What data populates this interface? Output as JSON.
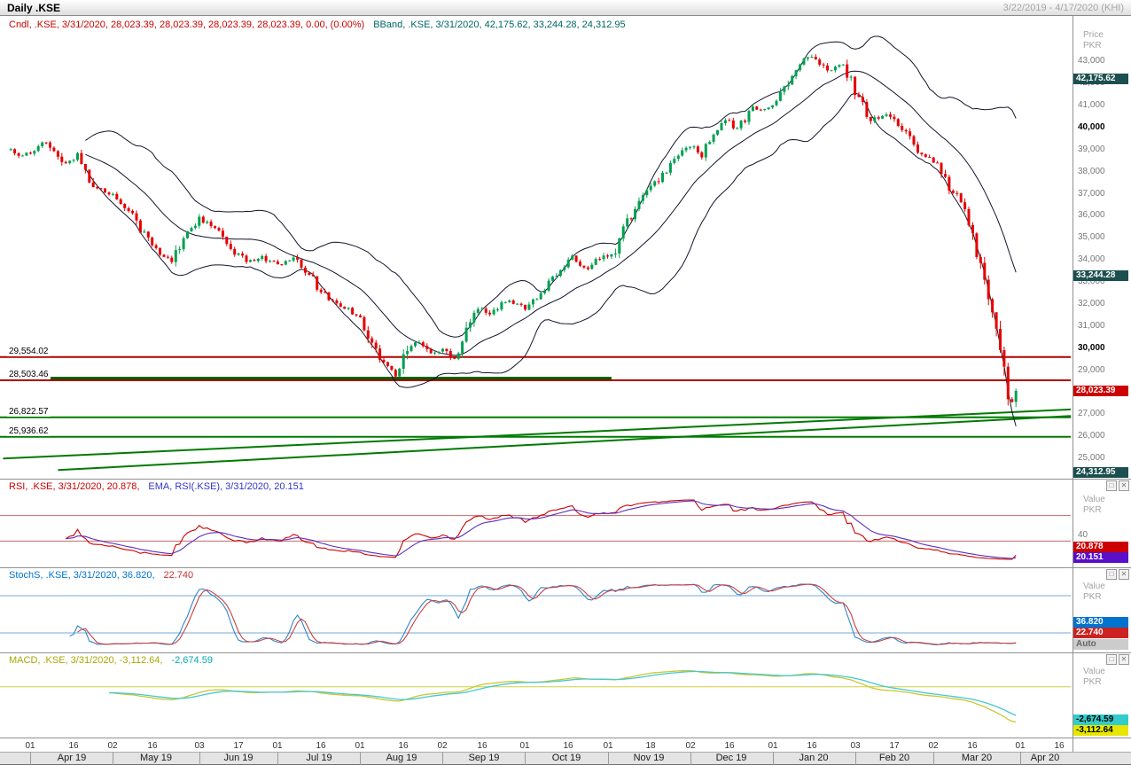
{
  "title_bar": {
    "title": "Daily .KSE",
    "range": "3/22/2019 - 4/17/2020 (KHI)"
  },
  "window_controls": {
    "restore": "□",
    "close": "✕"
  },
  "axis": {
    "price_unit_line1": "Price",
    "price_unit_line2": "PKR",
    "value_unit_line1": "Value",
    "value_unit_line2": "PKR",
    "main_ticks": [
      {
        "value": 43000,
        "label": "43,000",
        "bold": false
      },
      {
        "value": 42000,
        "label": "42,000",
        "bold": false
      },
      {
        "value": 41000,
        "label": "41,000",
        "bold": false
      },
      {
        "value": 40000,
        "label": "40,000",
        "bold": true
      },
      {
        "value": 39000,
        "label": "39,000",
        "bold": false
      },
      {
        "value": 38000,
        "label": "38,000",
        "bold": false
      },
      {
        "value": 37000,
        "label": "37,000",
        "bold": false
      },
      {
        "value": 36000,
        "label": "36,000",
        "bold": false
      },
      {
        "value": 35000,
        "label": "35,000",
        "bold": false
      },
      {
        "value": 34000,
        "label": "34,000",
        "bold": false
      },
      {
        "value": 33000,
        "label": "33,000",
        "bold": false
      },
      {
        "value": 32000,
        "label": "32,000",
        "bold": false
      },
      {
        "value": 31000,
        "label": "31,000",
        "bold": false
      },
      {
        "value": 30000,
        "label": "30,000",
        "bold": true
      },
      {
        "value": 29000,
        "label": "29,000",
        "bold": false
      },
      {
        "value": 28000,
        "label": "28,000",
        "bold": false
      },
      {
        "value": 27000,
        "label": "27,000",
        "bold": false
      },
      {
        "value": 26000,
        "label": "26,000",
        "bold": false
      },
      {
        "value": 25000,
        "label": "25,000",
        "bold": false
      }
    ],
    "rsi_ticks": [
      {
        "value": 40,
        "label": "40"
      }
    ]
  },
  "legends": {
    "main": [
      {
        "text": "Cndl, .KSE, 3/31/2020, 28,023.39, 28,023.39, 28,023.39, 28,023.39, 0.00, (0.00%)",
        "color": "#cc0000"
      },
      {
        "text": "BBand, .KSE, 3/31/2020, 42,175.62, 33,244.28, 24,312.95",
        "color": "#006666"
      }
    ],
    "rsi": [
      {
        "text": "RSI, .KSE, 3/31/2020, 20.878,",
        "color": "#cc0000"
      },
      {
        "text": "EMA, RSI(.KSE), 3/31/2020, 20.151",
        "color": "#3333cc"
      }
    ],
    "stoch": [
      {
        "text": "StochS, .KSE, 3/31/2020, 36.820,",
        "color": "#0073cf"
      },
      {
        "text": "22.740",
        "color": "#cc3333"
      }
    ],
    "macd": [
      {
        "text": "MACD, .KSE, 3/31/2020, -3,112.64,",
        "color": "#a8a800"
      },
      {
        "text": "-2,674.59",
        "color": "#00aab4"
      }
    ]
  },
  "badges": {
    "main": [
      {
        "text": "42,175.62",
        "value": 42175.62,
        "bg": "#1c4f4f",
        "fg": "#ffffff"
      },
      {
        "text": "33,244.28",
        "value": 33244.28,
        "bg": "#1c4f4f",
        "fg": "#ffffff"
      },
      {
        "text": "28,023.39",
        "value": 28023.39,
        "bg": "#cc0000",
        "fg": "#ffffff"
      },
      {
        "text": "24,312.95",
        "value": 24312.95,
        "bg": "#1c4f4f",
        "fg": "#ffffff"
      }
    ],
    "rsi": [
      {
        "text": "20.878",
        "value": 20.878,
        "bg": "#cc0000",
        "fg": "#ffffff"
      },
      {
        "text": "20.151",
        "value": 20.151,
        "bg": "#5a10c8",
        "fg": "#ffffff"
      }
    ],
    "stoch": [
      {
        "text": "36.820",
        "value": 36.82,
        "bg": "#0073cf",
        "fg": "#ffffff"
      },
      {
        "text": "22.740",
        "value": 22.74,
        "bg": "#cc2222",
        "fg": "#ffffff"
      },
      {
        "text": "Auto",
        "value": 1,
        "bg": "#cccccc",
        "fg": "#666666"
      }
    ],
    "macd": [
      {
        "text": "-2,674.59",
        "value": -2674.59,
        "bg": "#33cccc",
        "fg": "#000000"
      },
      {
        "text": "-3,112.64",
        "value": -3112.64,
        "bg": "#e6e600",
        "fg": "#000000"
      }
    ]
  },
  "chart_data": {
    "type": "candlestick",
    "title": "Daily .KSE",
    "instrument": ".KSE",
    "interval": "Daily",
    "x_axis_range": "3/22/2019 - 4/17/2020",
    "total_slots": 270,
    "data_days": 257,
    "last_close": 28023.39,
    "y_axis": {
      "label": "Price PKR",
      "min": 24200,
      "max": 43900,
      "tick_step": 1000
    },
    "noise": {
      "body_base": 140,
      "body_slope": 1.0,
      "shadow_base": 55,
      "shadow_slope": 0.45
    },
    "price_keypoints": [
      [
        0,
        39000
      ],
      [
        2,
        38750
      ],
      [
        5,
        38800
      ],
      [
        9,
        39300
      ],
      [
        13,
        38300
      ],
      [
        17,
        38700
      ],
      [
        21,
        37300
      ],
      [
        26,
        36900
      ],
      [
        30,
        36300
      ],
      [
        34,
        35100
      ],
      [
        38,
        34200
      ],
      [
        41,
        33900
      ],
      [
        45,
        35300
      ],
      [
        48,
        35800
      ],
      [
        52,
        35400
      ],
      [
        56,
        34400
      ],
      [
        60,
        33900
      ],
      [
        64,
        34100
      ],
      [
        68,
        33700
      ],
      [
        72,
        34000
      ],
      [
        76,
        33300
      ],
      [
        80,
        32300
      ],
      [
        84,
        31900
      ],
      [
        89,
        31400
      ],
      [
        92,
        30100
      ],
      [
        95,
        29300
      ],
      [
        98,
        28700
      ],
      [
        101,
        29900
      ],
      [
        104,
        30300
      ],
      [
        107,
        29700
      ],
      [
        110,
        29900
      ],
      [
        113,
        29500
      ],
      [
        116,
        30900
      ],
      [
        119,
        31900
      ],
      [
        122,
        31500
      ],
      [
        126,
        32100
      ],
      [
        131,
        31800
      ],
      [
        135,
        32500
      ],
      [
        139,
        33300
      ],
      [
        143,
        34000
      ],
      [
        147,
        33600
      ],
      [
        151,
        34300
      ],
      [
        153,
        34100
      ],
      [
        156,
        35400
      ],
      [
        160,
        36600
      ],
      [
        164,
        37400
      ],
      [
        168,
        38300
      ],
      [
        173,
        39200
      ],
      [
        176,
        38700
      ],
      [
        179,
        39600
      ],
      [
        182,
        40300
      ],
      [
        185,
        39900
      ],
      [
        189,
        40800
      ],
      [
        194,
        40900
      ],
      [
        198,
        42100
      ],
      [
        202,
        43000
      ],
      [
        204,
        43200
      ],
      [
        208,
        42500
      ],
      [
        212,
        42800
      ],
      [
        215,
        41700
      ],
      [
        219,
        40300
      ],
      [
        223,
        40600
      ],
      [
        227,
        39900
      ],
      [
        231,
        39000
      ],
      [
        235,
        38500
      ],
      [
        239,
        37300
      ],
      [
        243,
        36300
      ],
      [
        246,
        34200
      ],
      [
        249,
        32300
      ],
      [
        251,
        30900
      ],
      [
        252,
        30200
      ],
      [
        253,
        28900
      ],
      [
        254,
        27600
      ],
      [
        255,
        27500
      ],
      [
        256,
        28023.39
      ]
    ],
    "indicators": {
      "bollinger": {
        "period": 20,
        "mult": 2,
        "upper": 42175.62,
        "middle": 33244.28,
        "lower": 24312.95
      },
      "rsi": {
        "period": 14,
        "value": 20.878,
        "ema_period": 9,
        "ema_value": 20.151,
        "upper_line": 70,
        "lower_line": 30
      },
      "stoch": {
        "k": 14,
        "smooth": 3,
        "d": 3,
        "k_value": 36.82,
        "d_value": 22.74,
        "upper_line": 80,
        "lower_line": 20
      },
      "macd": {
        "fast": 12,
        "slow": 26,
        "signal": 9,
        "macd_value": -3112.64,
        "signal_value": -2674.59,
        "zero_line": 0
      }
    },
    "levels": [
      {
        "type": "h",
        "label": "29,554.02",
        "value": 29554.02,
        "color": "#b40000",
        "w": 2
      },
      {
        "type": "h",
        "label": "28,503.46",
        "value": 28503.46,
        "color": "#b40000",
        "w": 2
      },
      {
        "type": "h",
        "label": "26,822.57",
        "value": 26822.57,
        "color": "#007a00",
        "w": 2
      },
      {
        "type": "h",
        "label": "25,936.62",
        "value": 25936.62,
        "color": "#007a00",
        "w": 2
      },
      {
        "type": "seg",
        "label": null,
        "value": 28600,
        "d1": 0,
        "d2": 153,
        "color": "#005c00",
        "w": 3
      },
      {
        "type": "diag",
        "label": null,
        "d1": -2,
        "v1": 24950,
        "d2": 272,
        "v2": 27180,
        "color": "#007a00",
        "w": 2
      },
      {
        "type": "diag",
        "label": null,
        "d1": 12,
        "v1": 24430,
        "d2": 272,
        "v2": 26880,
        "color": "#007a00",
        "w": 2
      }
    ],
    "months": [
      {
        "label": "Apr 19",
        "start": 5,
        "ticks": [
          [
            "01",
            5
          ],
          [
            "16",
            16
          ]
        ]
      },
      {
        "label": "May 19",
        "start": 26,
        "ticks": [
          [
            "02",
            26
          ],
          [
            "16",
            36
          ]
        ]
      },
      {
        "label": "Jun 19",
        "start": 48,
        "ticks": [
          [
            "03",
            48
          ],
          [
            "17",
            58
          ]
        ]
      },
      {
        "label": "Jul 19",
        "start": 68,
        "ticks": [
          [
            "01",
            68
          ],
          [
            "16",
            79
          ]
        ]
      },
      {
        "label": "Aug 19",
        "start": 89,
        "ticks": [
          [
            "01",
            89
          ],
          [
            "16",
            100
          ]
        ]
      },
      {
        "label": "Sep 19",
        "start": 110,
        "ticks": [
          [
            "02",
            110
          ],
          [
            "16",
            120
          ]
        ]
      },
      {
        "label": "Oct 19",
        "start": 131,
        "ticks": [
          [
            "01",
            131
          ],
          [
            "16",
            142
          ]
        ]
      },
      {
        "label": "Nov 19",
        "start": 152,
        "ticks": [
          [
            "01",
            152
          ],
          [
            "18",
            163
          ]
        ]
      },
      {
        "label": "Dec 19",
        "start": 173,
        "ticks": [
          [
            "02",
            173
          ],
          [
            "16",
            183
          ]
        ]
      },
      {
        "label": "Jan 20",
        "start": 194,
        "ticks": [
          [
            "01",
            194
          ],
          [
            "16",
            204
          ]
        ]
      },
      {
        "label": "Feb 20",
        "start": 215,
        "ticks": [
          [
            "03",
            215
          ],
          [
            "17",
            225
          ]
        ]
      },
      {
        "label": "Mar 20",
        "start": 235,
        "ticks": [
          [
            "02",
            235
          ],
          [
            "16",
            245
          ]
        ]
      },
      {
        "label": "Apr 20",
        "start": 257,
        "ticks": [
          [
            "01",
            257
          ],
          [
            "16",
            267
          ]
        ]
      }
    ]
  }
}
